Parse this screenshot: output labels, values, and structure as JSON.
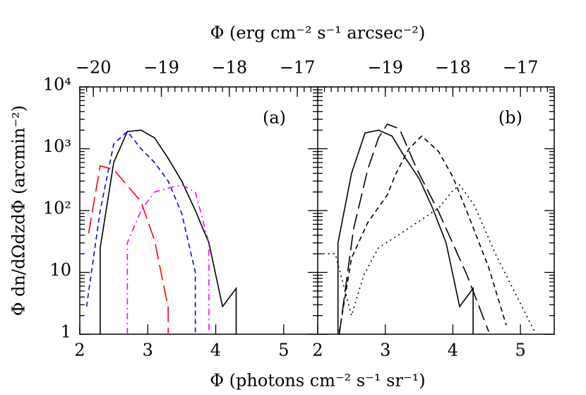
{
  "chart_data": [
    {
      "type": "line",
      "panel_label": "(a)",
      "y_label": "Φ  dn/dΩdzdΦ  (arcmin⁻²)",
      "x_label": "Φ  (photons cm⁻² s⁻¹ sr⁻¹)",
      "x2_label": "Φ  (erg cm⁻² s⁻¹ arcsec⁻²)",
      "xlim": [
        2,
        5.5
      ],
      "xticks": [
        2,
        3,
        4,
        5
      ],
      "x2lim": [
        -20.2,
        -16.7
      ],
      "x2ticks": [
        {
          "value": -20,
          "label": "−20"
        },
        {
          "value": -19,
          "label": "−19"
        },
        {
          "value": -18,
          "label": "−18"
        },
        {
          "value": -17,
          "label": "−17"
        }
      ],
      "ylim": [
        1,
        10000
      ],
      "log_y": true,
      "yticks": [
        1,
        10,
        {
          "value": 100,
          "label": "10²"
        },
        {
          "value": 1000,
          "label": "10³"
        },
        {
          "value": 10000,
          "label": "10⁴"
        }
      ],
      "series": [
        {
          "color": "#000000",
          "style": "solid",
          "x": [
            2.3,
            2.3,
            2.5,
            2.7,
            2.9,
            3.1,
            3.3,
            3.5,
            3.7,
            3.9,
            4.1,
            4.3,
            4.3
          ],
          "values": [
            1,
            25,
            600,
            1900,
            2000,
            1500,
            700,
            300,
            100,
            30,
            2.8,
            5.5,
            1
          ]
        },
        {
          "color": "#0000ff",
          "style": "dashed",
          "x": [
            2.1,
            2.3,
            2.5,
            2.7,
            2.9,
            3.1,
            3.3,
            3.5,
            3.7,
            3.7
          ],
          "values": [
            2.8,
            100,
            1200,
            1900,
            1000,
            600,
            300,
            90,
            10,
            1
          ]
        },
        {
          "color": "#ff0000",
          "style": "longdash",
          "x": [
            2.13,
            2.3,
            2.5,
            2.9,
            3.1,
            3.3,
            3.3
          ],
          "values": [
            43,
            530,
            460,
            140,
            33,
            2.7,
            1
          ]
        },
        {
          "color": "#ff00ff",
          "style": "dotdash",
          "x": [
            2.7,
            2.7,
            2.9,
            3.1,
            3.3,
            3.5,
            3.7,
            3.9,
            3.9
          ],
          "values": [
            1,
            30,
            100,
            200,
            230,
            260,
            200,
            30,
            1
          ]
        }
      ]
    },
    {
      "type": "line",
      "panel_label": "(b)",
      "xlim": [
        2,
        5.5
      ],
      "xticks": [
        2,
        3,
        4,
        5
      ],
      "x2lim": [
        -20,
        -16.5
      ],
      "x2ticks": [
        {
          "value": -19,
          "label": "−19"
        },
        {
          "value": -18,
          "label": "−18"
        },
        {
          "value": -17,
          "label": "−17"
        }
      ],
      "ylim": [
        1,
        10000
      ],
      "log_y": true,
      "yticks": [
        1,
        10,
        100,
        1000,
        10000
      ],
      "series": [
        {
          "color": "#000000",
          "style": "solid",
          "x": [
            2.3,
            2.3,
            2.5,
            2.7,
            2.9,
            3.1,
            3.3,
            3.5,
            3.7,
            3.9,
            4.1,
            4.3,
            4.3
          ],
          "values": [
            1,
            30,
            400,
            1800,
            2000,
            1600,
            700,
            330,
            110,
            30,
            2.8,
            5.5,
            1
          ]
        },
        {
          "color": "#000000",
          "style": "longdash",
          "x": [
            2.32,
            2.53,
            2.74,
            2.9,
            3.03,
            3.21,
            3.47,
            3.79,
            4.21,
            4.53
          ],
          "values": [
            1,
            50,
            460,
            1500,
            2500,
            2100,
            460,
            95,
            9,
            1.1
          ]
        },
        {
          "color": "#000000",
          "style": "dashed",
          "x": [
            2.32,
            2.5,
            2.74,
            3.03,
            3.16,
            3.35,
            3.54,
            3.79,
            4.0,
            4.21,
            4.53,
            4.79
          ],
          "values": [
            1.1,
            17,
            64,
            180,
            400,
            1000,
            1600,
            900,
            350,
            95,
            12,
            1.4
          ]
        },
        {
          "color": "#000000",
          "style": "dotted",
          "x": [
            2.08,
            2.26,
            2.5,
            2.68,
            2.9,
            3.16,
            3.47,
            3.79,
            4.0,
            4.1,
            4.32,
            4.63,
            4.95,
            5.21
          ],
          "values": [
            20,
            20,
            2,
            9,
            25,
            38,
            64,
            110,
            210,
            260,
            120,
            20,
            4,
            1.1
          ]
        }
      ]
    }
  ]
}
